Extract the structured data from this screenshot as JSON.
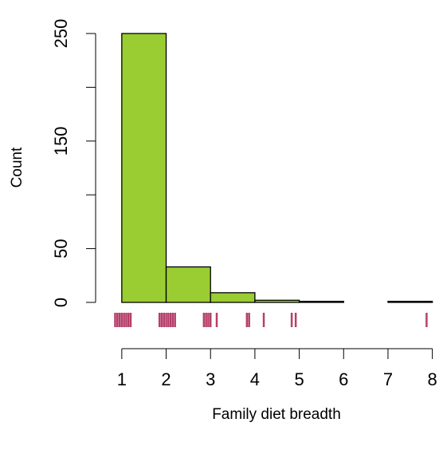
{
  "chart_data": {
    "type": "histogram",
    "x_label": "Family diet breadth",
    "y_label": "Count",
    "bins": [
      1,
      2,
      3,
      4,
      5,
      6,
      7,
      8
    ],
    "values": [
      250,
      33,
      9,
      2,
      1,
      0,
      1
    ],
    "color": "#9acd32",
    "rug": [
      0.85,
      0.9,
      0.95,
      1.0,
      1.05,
      1.1,
      1.15,
      1.2,
      1.85,
      1.9,
      1.95,
      2.0,
      2.05,
      2.1,
      2.15,
      2.2,
      2.85,
      2.9,
      2.95,
      3.0,
      3.14,
      3.82,
      3.87,
      4.2,
      4.83,
      4.92,
      7.87
    ],
    "rug_color": "#b5406a",
    "xlim": [
      0.41,
      8.24
    ],
    "ylim": [
      0,
      250
    ],
    "xticks": [
      1,
      2,
      3,
      4,
      5,
      6,
      7,
      8
    ],
    "yticks": [
      0,
      50,
      150,
      250
    ],
    "yticks_unlabeled": [
      100,
      200
    ]
  }
}
